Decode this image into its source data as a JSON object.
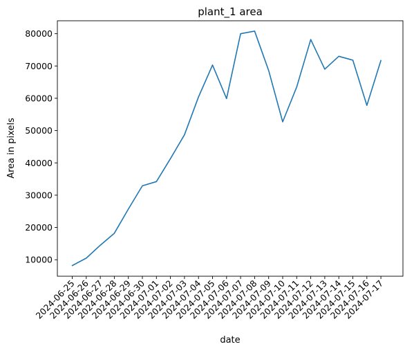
{
  "chart_data": {
    "type": "line",
    "title": "plant_1 area",
    "xlabel": "date",
    "ylabel": "Area in pixels",
    "categories": [
      "2024-06-25",
      "2024-06-26",
      "2024-06-27",
      "2024-06-28",
      "2024-06-29",
      "2024-06-30",
      "2024-07-01",
      "2024-07-02",
      "2024-07-03",
      "2024-07-04",
      "2024-07-05",
      "2024-07-06",
      "2024-07-07",
      "2024-07-08",
      "2024-07-09",
      "2024-07-10",
      "2024-07-11",
      "2024-07-12",
      "2024-07-13",
      "2024-07-14",
      "2024-07-15",
      "2024-07-16",
      "2024-07-17"
    ],
    "values": [
      8200,
      10500,
      14500,
      18200,
      25700,
      32900,
      34200,
      41300,
      48700,
      60400,
      70300,
      59900,
      80000,
      80800,
      68600,
      52700,
      63500,
      78200,
      69000,
      73000,
      71800,
      57800,
      71700
    ],
    "yticks": [
      10000,
      20000,
      30000,
      40000,
      50000,
      60000,
      70000,
      80000
    ],
    "ylim": [
      4900,
      84000
    ],
    "grid": false,
    "line_color": "#1f77b4"
  }
}
